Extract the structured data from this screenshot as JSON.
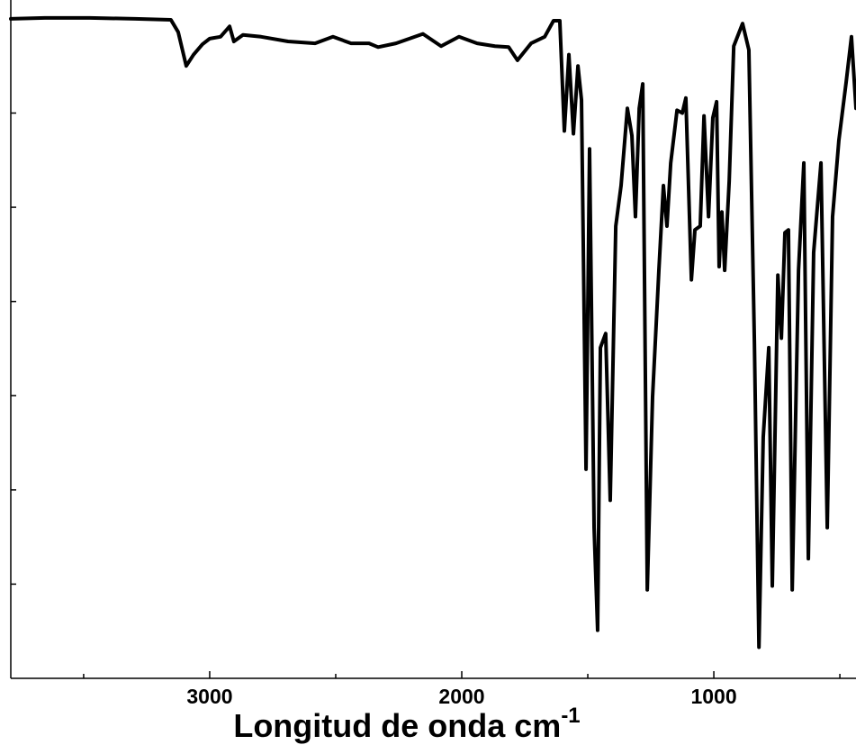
{
  "chart_data": {
    "type": "line",
    "x_label": "Longitud de onda cm",
    "x_label_superscript": "-1",
    "xlim": [
      3789,
      436
    ],
    "xticks": [
      3000,
      2000,
      1000
    ],
    "xminor_ticks": [
      3500,
      2500,
      1500,
      500
    ],
    "ylim": [
      0,
      72
    ],
    "yticks": [
      10,
      20,
      30,
      40,
      50,
      60
    ],
    "ytick_labels": false,
    "grid": false,
    "series": [
      {
        "color": "#000000",
        "x": [
          3789,
          3654,
          3475,
          3296,
          3154,
          3125,
          3093,
          3064,
          3029,
          3000,
          2957,
          2921,
          2904,
          2868,
          2796,
          2689,
          2582,
          2511,
          2439,
          2368,
          2332,
          2261,
          2154,
          2082,
          2011,
          1939,
          1868,
          1814,
          1779,
          1725,
          1671,
          1636,
          1611,
          1593,
          1575,
          1557,
          1539,
          1525,
          1507,
          1493,
          1475,
          1461,
          1450,
          1429,
          1411,
          1389,
          1368,
          1343,
          1325,
          1311,
          1296,
          1282,
          1264,
          1243,
          1218,
          1200,
          1186,
          1171,
          1146,
          1125,
          1111,
          1089,
          1075,
          1054,
          1039,
          1021,
          1004,
          989,
          979,
          968,
          957,
          939,
          921,
          886,
          861,
          839,
          821,
          804,
          782,
          768,
          746,
          732,
          718,
          704,
          689,
          664,
          643,
          625,
          604,
          575,
          550,
          529,
          504,
          475,
          454,
          436
        ],
        "values": [
          70.0,
          70.1,
          70.1,
          70.0,
          69.9,
          68.6,
          65.0,
          66.2,
          67.3,
          67.9,
          68.1,
          69.2,
          67.6,
          68.3,
          68.1,
          67.6,
          67.4,
          68.1,
          67.4,
          67.4,
          67.0,
          67.4,
          68.4,
          67.1,
          68.1,
          67.4,
          67.1,
          67.0,
          65.6,
          67.4,
          68.1,
          69.8,
          69.8,
          58.1,
          66.2,
          57.8,
          65.0,
          61.4,
          22.2,
          56.2,
          16.0,
          5.1,
          35.1,
          36.6,
          18.9,
          48.0,
          52.3,
          60.5,
          57.6,
          49.0,
          60.5,
          63.1,
          9.4,
          29.9,
          43.3,
          52.3,
          48.0,
          54.7,
          60.3,
          60.0,
          61.6,
          42.3,
          47.6,
          48.0,
          59.7,
          49.0,
          59.5,
          61.2,
          43.7,
          49.5,
          43.3,
          52.8,
          67.1,
          69.5,
          66.7,
          35.6,
          3.3,
          25.6,
          35.1,
          9.8,
          42.8,
          36.1,
          47.3,
          47.6,
          9.4,
          43.3,
          54.7,
          12.7,
          45.2,
          54.7,
          16.0,
          49.0,
          57.1,
          63.3,
          68.1,
          60.5
        ]
      }
    ]
  }
}
